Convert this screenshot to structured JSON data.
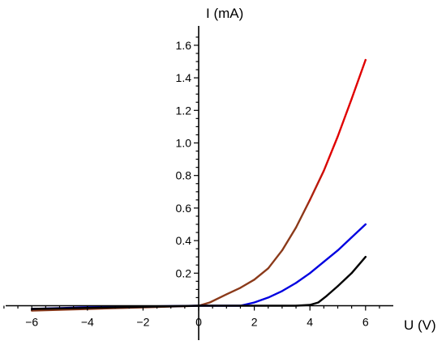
{
  "chart_data": {
    "type": "line",
    "xlabel": "U (V)",
    "ylabel": "I (mA)",
    "xlim": [
      -7.1,
      7.0
    ],
    "ylim": [
      -0.02,
      1.72
    ],
    "x_ticks": [
      -6,
      -4,
      -2,
      0,
      2,
      4,
      6
    ],
    "x_tick_labels": [
      "−6",
      "−4",
      "−2",
      "0",
      "2",
      "4",
      "6"
    ],
    "y_ticks": [
      0.2,
      0.4,
      0.6,
      0.8,
      1.0,
      1.2,
      1.4,
      1.6
    ],
    "y_tick_labels": [
      "0.2",
      "0.4",
      "0.6",
      "0.8",
      "1.0",
      "1.2",
      "1.4",
      "1.6"
    ],
    "grid": false,
    "series": [
      {
        "color": "#e00000",
        "color_low": "#8b3a1a",
        "x": [
          -6,
          -4,
          -2,
          0,
          0.4,
          1,
          1.5,
          2,
          2.5,
          3,
          3.5,
          4,
          4.5,
          5,
          5.5,
          6
        ],
        "y": [
          -0.03,
          -0.02,
          -0.01,
          0,
          0.02,
          0.07,
          0.11,
          0.16,
          0.23,
          0.34,
          0.48,
          0.65,
          0.83,
          1.04,
          1.27,
          1.51
        ]
      },
      {
        "color": "#0000e0",
        "x": [
          -6,
          -4,
          -2,
          0,
          1.5,
          2,
          2.5,
          3,
          3.5,
          4,
          4.5,
          5,
          5.5,
          6
        ],
        "y": [
          -0.02,
          -0.01,
          -0.005,
          0,
          0,
          0.02,
          0.05,
          0.09,
          0.14,
          0.2,
          0.27,
          0.34,
          0.42,
          0.5
        ]
      },
      {
        "color": "#000000",
        "x": [
          -6,
          0,
          3,
          3.5,
          4,
          4.3,
          4.6,
          5,
          5.5,
          6
        ],
        "y": [
          -0.02,
          0,
          0,
          0,
          0.005,
          0.02,
          0.06,
          0.12,
          0.2,
          0.3
        ]
      }
    ]
  }
}
